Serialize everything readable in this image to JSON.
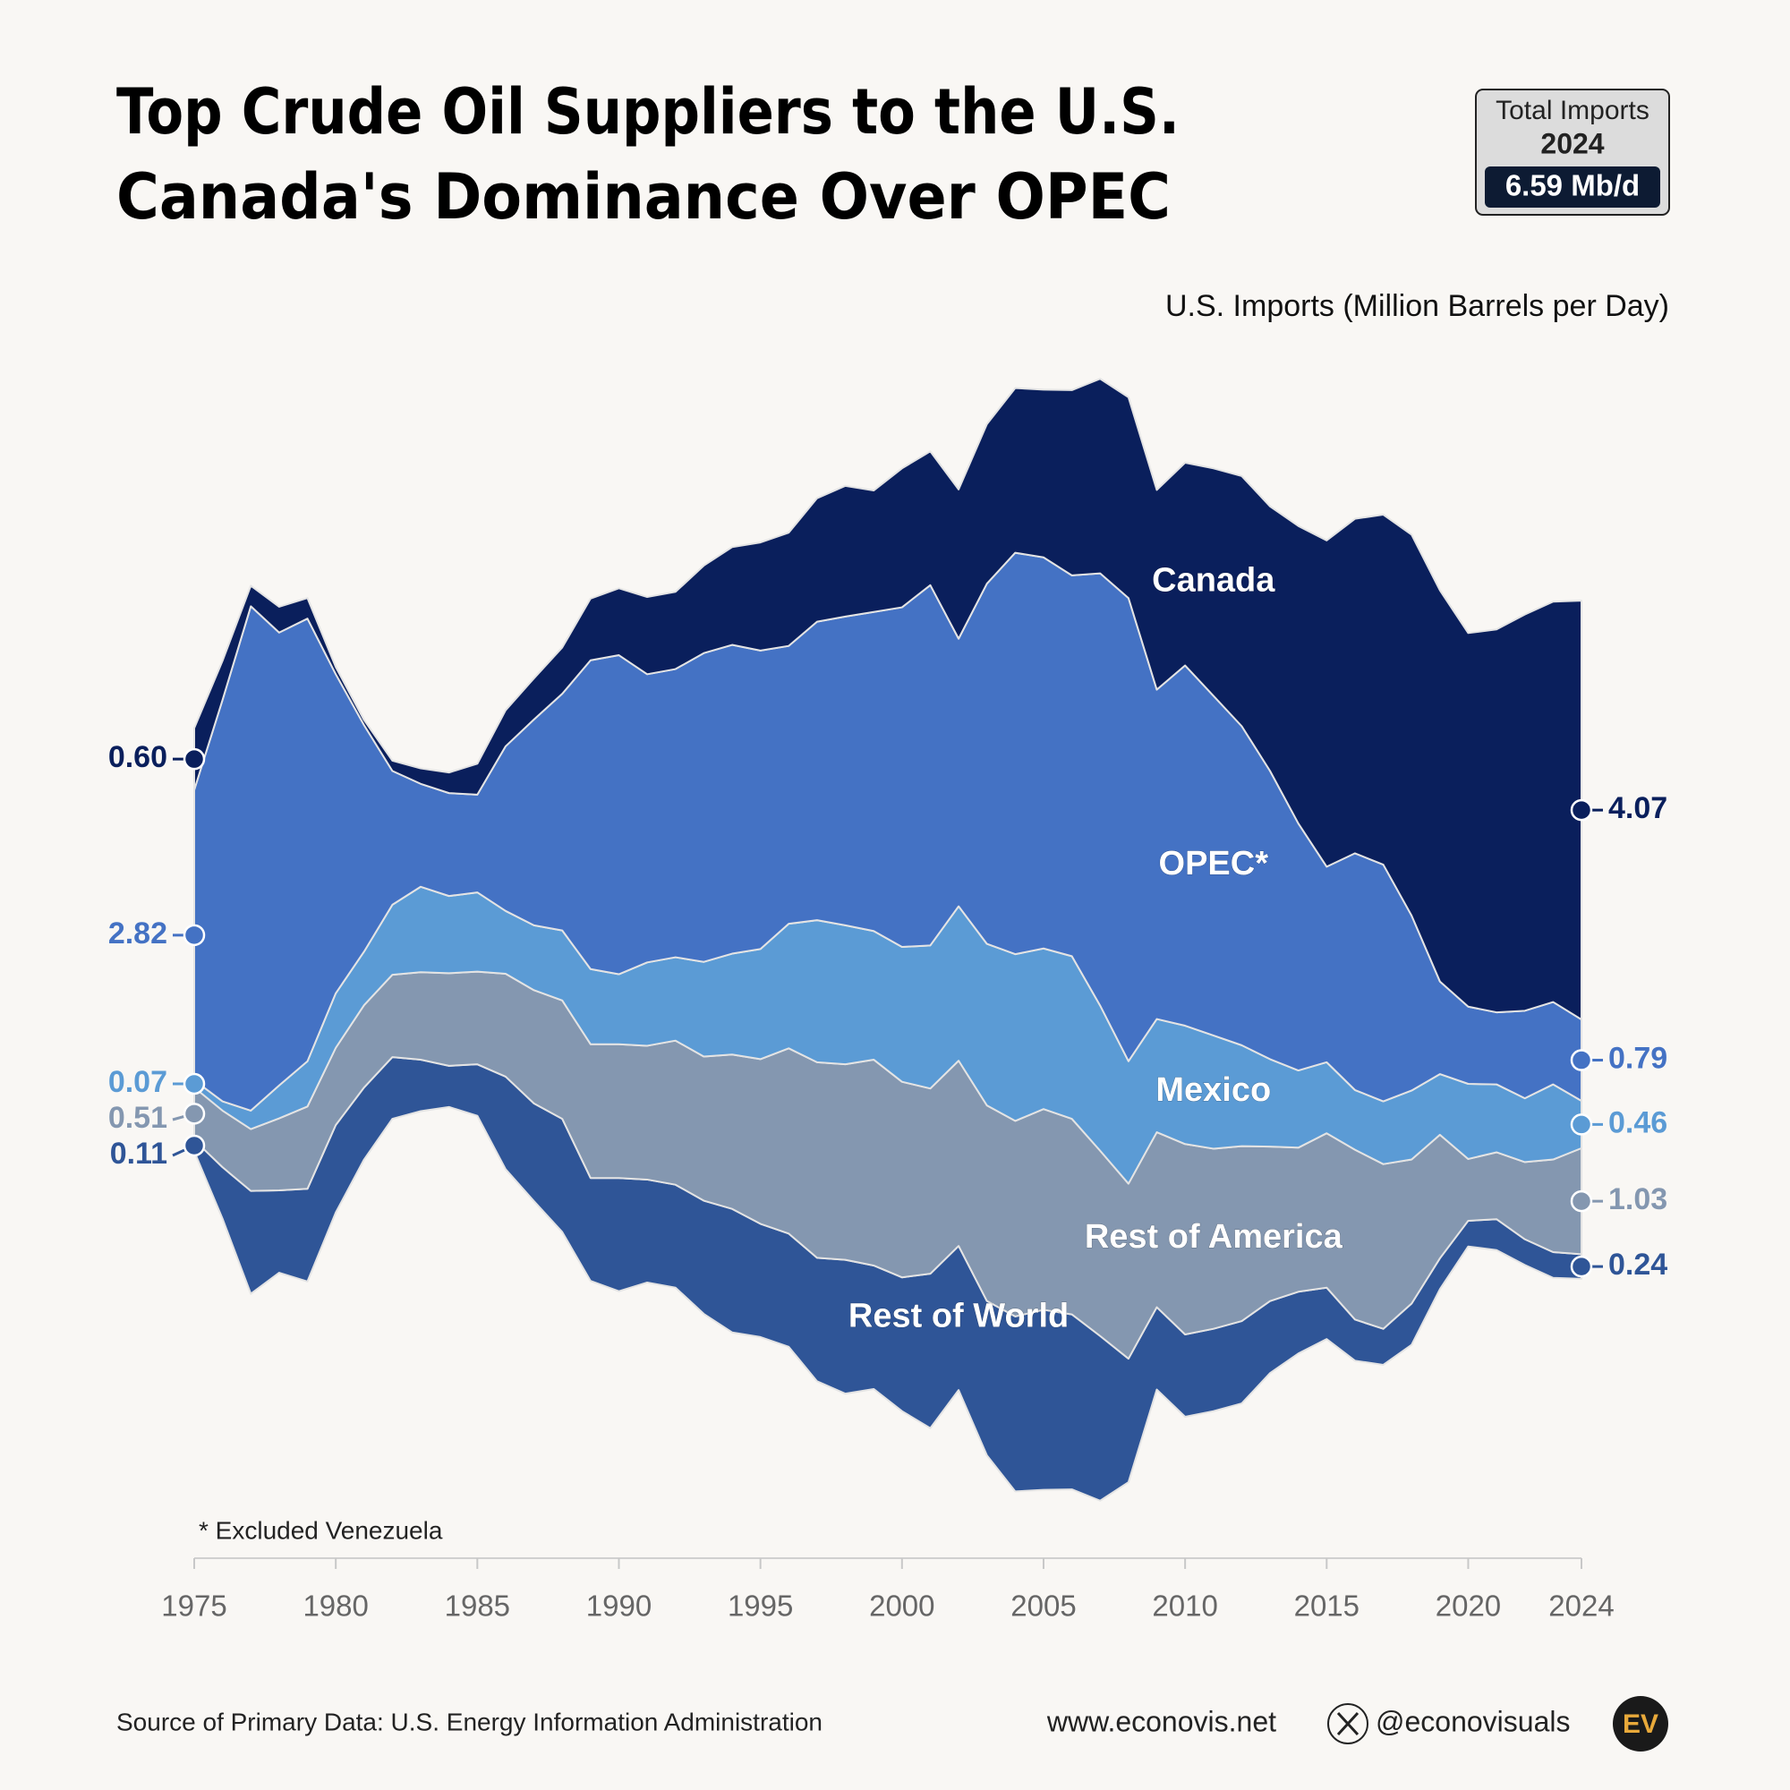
{
  "chart_data": {
    "type": "streamgraph",
    "title": "Top Crude Oil Suppliers to the U.S.",
    "subtitle": "Canada's Dominance Over OPEC",
    "total_box": {
      "label": "Total Imports",
      "year": "2024",
      "value": "6.59 Mb/d"
    },
    "y_label": "U.S. Imports (Million Barrels per Day)",
    "footnote": "* Excluded Venezuela",
    "source": "Source of Primary Data: U.S. Energy Information Administration",
    "website": "www.econovis.net",
    "handle": "@econovisuals",
    "logo": "EV",
    "xlim": [
      1975,
      2024
    ],
    "xticks": [
      1975,
      1980,
      1985,
      1990,
      1995,
      2000,
      2005,
      2010,
      2015,
      2020,
      2024
    ],
    "x": [
      1975,
      1976,
      1977,
      1978,
      1979,
      1980,
      1981,
      1982,
      1983,
      1984,
      1985,
      1986,
      1987,
      1988,
      1989,
      1990,
      1991,
      1992,
      1993,
      1994,
      1995,
      1996,
      1997,
      1998,
      1999,
      2000,
      2001,
      2002,
      2003,
      2004,
      2005,
      2006,
      2007,
      2008,
      2009,
      2010,
      2011,
      2012,
      2013,
      2014,
      2015,
      2016,
      2017,
      2018,
      2019,
      2020,
      2021,
      2022,
      2023,
      2024
    ],
    "series": [
      {
        "name": "Rest of World",
        "color": "#2f5597",
        "values": [
          0.11,
          0.5,
          1.0,
          0.8,
          0.9,
          0.85,
          0.7,
          0.6,
          0.5,
          0.4,
          0.5,
          0.9,
          0.95,
          1.1,
          1.0,
          1.1,
          1.0,
          1.0,
          1.1,
          1.2,
          1.1,
          1.1,
          1.2,
          1.3,
          1.2,
          1.3,
          1.5,
          1.4,
          1.5,
          1.7,
          1.75,
          1.7,
          1.6,
          1.2,
          0.8,
          0.8,
          0.8,
          0.8,
          0.7,
          0.6,
          0.5,
          0.4,
          0.35,
          0.4,
          0.3,
          0.25,
          0.3,
          0.25,
          0.25,
          0.24
        ]
      },
      {
        "name": "Rest of America",
        "color": "#8497b0",
        "values": [
          0.51,
          0.55,
          0.6,
          0.7,
          0.8,
          0.75,
          0.8,
          0.8,
          0.85,
          0.9,
          0.9,
          1.0,
          1.1,
          1.15,
          1.3,
          1.3,
          1.3,
          1.4,
          1.4,
          1.5,
          1.6,
          1.8,
          1.9,
          1.9,
          2.0,
          1.9,
          1.8,
          1.8,
          1.9,
          1.9,
          1.95,
          1.9,
          1.8,
          1.7,
          1.7,
          1.85,
          1.75,
          1.7,
          1.5,
          1.4,
          1.5,
          1.65,
          1.6,
          1.4,
          1.2,
          0.6,
          0.65,
          0.75,
          0.9,
          1.03
        ]
      },
      {
        "name": "Mexico",
        "color": "#5b9bd5",
        "values": [
          0.07,
          0.09,
          0.18,
          0.32,
          0.44,
          0.53,
          0.52,
          0.68,
          0.83,
          0.75,
          0.77,
          0.61,
          0.63,
          0.68,
          0.73,
          0.68,
          0.81,
          0.81,
          0.92,
          0.98,
          1.07,
          1.21,
          1.38,
          1.35,
          1.25,
          1.31,
          1.39,
          1.5,
          1.57,
          1.62,
          1.56,
          1.58,
          1.41,
          1.19,
          1.1,
          1.15,
          1.1,
          0.98,
          0.85,
          0.75,
          0.69,
          0.58,
          0.61,
          0.67,
          0.59,
          0.73,
          0.66,
          0.62,
          0.73,
          0.46
        ]
      },
      {
        "name": "OPEC*",
        "color": "#4472c4",
        "values": [
          2.82,
          3.9,
          4.9,
          4.4,
          4.3,
          3.1,
          2.2,
          1.3,
          1.0,
          1.0,
          0.95,
          1.6,
          2.0,
          2.3,
          3.0,
          3.1,
          2.8,
          2.8,
          3.0,
          3.0,
          2.9,
          2.7,
          2.9,
          3.0,
          3.1,
          3.3,
          3.5,
          2.6,
          3.5,
          3.9,
          3.8,
          3.7,
          4.2,
          4.5,
          3.2,
          3.5,
          3.3,
          3.1,
          2.8,
          2.4,
          1.9,
          2.3,
          2.3,
          1.7,
          0.9,
          0.75,
          0.7,
          0.85,
          0.8,
          0.79
        ]
      },
      {
        "name": "Canada",
        "color": "#0a1f5c",
        "values": [
          0.6,
          0.38,
          0.2,
          0.25,
          0.2,
          0.07,
          0.05,
          0.1,
          0.15,
          0.2,
          0.3,
          0.35,
          0.4,
          0.45,
          0.6,
          0.65,
          0.75,
          0.75,
          0.85,
          0.95,
          1.05,
          1.1,
          1.2,
          1.27,
          1.18,
          1.35,
          1.3,
          1.45,
          1.55,
          1.6,
          1.63,
          1.8,
          1.89,
          1.95,
          1.94,
          1.97,
          2.21,
          2.43,
          2.57,
          2.89,
          3.17,
          3.25,
          3.4,
          3.7,
          3.8,
          3.63,
          3.72,
          3.85,
          3.89,
          4.07
        ],
        "value_labels": [
          "0.60",
          null,
          null,
          null,
          null,
          null,
          null,
          null,
          null,
          null,
          null,
          null,
          null,
          null,
          null,
          null,
          null,
          null,
          null,
          null,
          null,
          null,
          null,
          null,
          null,
          null,
          null,
          null,
          null,
          null,
          null,
          null,
          null,
          null,
          null,
          null,
          null,
          null,
          null,
          null,
          null,
          null,
          null,
          null,
          null,
          null,
          null,
          null,
          null,
          "4.07"
        ]
      }
    ]
  }
}
